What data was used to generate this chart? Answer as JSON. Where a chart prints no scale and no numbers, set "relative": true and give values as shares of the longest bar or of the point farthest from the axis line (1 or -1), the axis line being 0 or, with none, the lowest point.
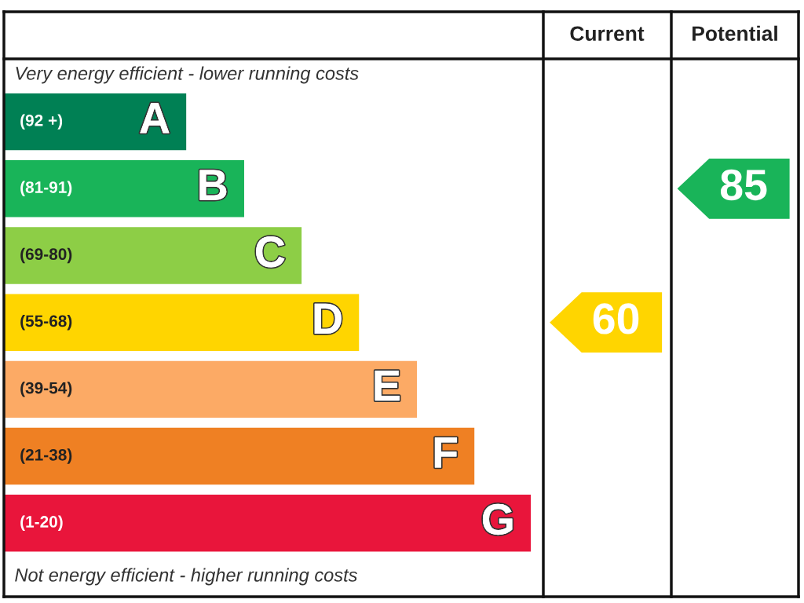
{
  "chart_data": {
    "type": "bar",
    "orientation": "horizontal",
    "relative": true,
    "categories": [
      "(92 +)",
      "(81-91)",
      "(69-80)",
      "(55-68)",
      "(39-54)",
      "(21-38)",
      "(1-20)"
    ],
    "values": [
      0.346,
      0.456,
      0.565,
      0.674,
      0.784,
      0.893,
      1
    ],
    "colors": [
      "#008054",
      "#19b459",
      "#8dce46",
      "#ffd500",
      "#fcaa65",
      "#ef8023",
      "#e9153b"
    ],
    "annotations": [
      "Current",
      "Potential",
      "Very energy efficient - lower running costs",
      "Not energy efficient - higher running costs",
      "60",
      "85",
      {
        "text": "A",
        "y": "(92 +)"
      },
      {
        "text": "B",
        "y": "(81-91)"
      },
      {
        "text": "C",
        "y": "(69-80)"
      },
      {
        "text": "D",
        "y": "(55-68)"
      },
      {
        "text": "E",
        "y": "(39-54)"
      },
      {
        "text": "F",
        "y": "(21-38)"
      },
      {
        "text": "G",
        "y": "(1-20)"
      }
    ]
  }
}
